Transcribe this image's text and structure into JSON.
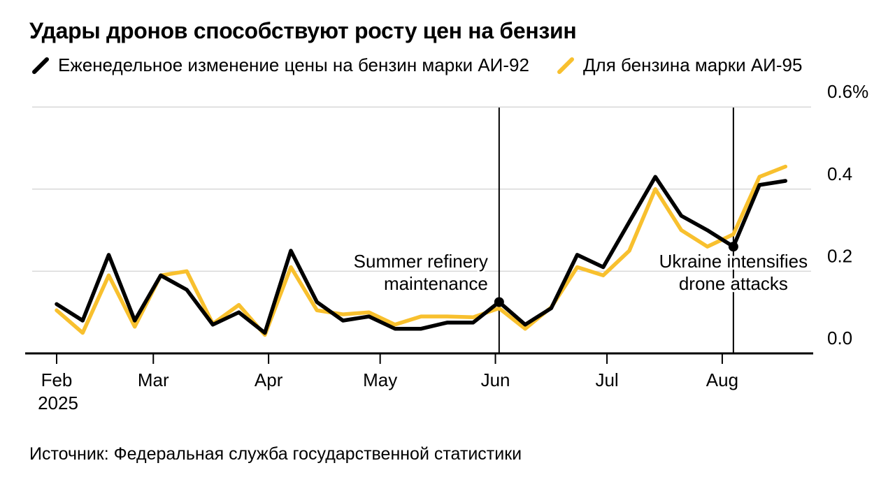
{
  "title": "Удары дронов способствуют росту цен на бензин",
  "legend": [
    {
      "label": "Еженедельное изменение цены на бензин марки АИ-92",
      "color": "#000000"
    },
    {
      "label": "Для бензина марки АИ-95",
      "color": "#F8C02E"
    }
  ],
  "source": "Источник: Федеральная служба государственной статистики",
  "chart_data": {
    "type": "line",
    "x_unit": "week",
    "year": "2025",
    "x": [
      "Feb 3",
      "Feb 10",
      "Feb 17",
      "Feb 24",
      "Mar 3",
      "Mar 10",
      "Mar 17",
      "Mar 24",
      "Mar 31",
      "Apr 7",
      "Apr 14",
      "Apr 21",
      "Apr 28",
      "May 5",
      "May 12",
      "May 19",
      "May 26",
      "Jun 2",
      "Jun 9",
      "Jun 16",
      "Jun 23",
      "Jun 30",
      "Jul 7",
      "Jul 14",
      "Jul 21",
      "Jul 28",
      "Aug 4",
      "Aug 11",
      "Aug 18"
    ],
    "series": [
      {
        "name": "АИ-92",
        "color": "#000000",
        "values": [
          0.12,
          0.08,
          0.24,
          0.08,
          0.19,
          0.155,
          0.07,
          0.1,
          0.05,
          0.25,
          0.125,
          0.08,
          0.09,
          0.06,
          0.06,
          0.075,
          0.075,
          0.125,
          0.07,
          0.11,
          0.24,
          0.21,
          0.32,
          0.43,
          0.335,
          0.3,
          0.26,
          0.41,
          0.42
        ]
      },
      {
        "name": "АИ-95",
        "color": "#F8C02E",
        "values": [
          0.105,
          0.05,
          0.19,
          0.065,
          0.19,
          0.2,
          0.072,
          0.118,
          0.045,
          0.21,
          0.105,
          0.095,
          0.1,
          0.07,
          0.09,
          0.09,
          0.088,
          0.11,
          0.06,
          0.112,
          0.21,
          0.19,
          0.25,
          0.4,
          0.3,
          0.26,
          0.29,
          0.43,
          0.455
        ]
      }
    ],
    "ylabel": "",
    "xlabel": "",
    "ylim": [
      0.0,
      0.6
    ],
    "grid": "horizontal",
    "legend_position": "top",
    "yticks": [
      {
        "value": 0.6,
        "label": "0.6%"
      },
      {
        "value": 0.4,
        "label": "0.4"
      },
      {
        "value": 0.2,
        "label": "0.2"
      },
      {
        "value": 0.0,
        "label": "0.0"
      }
    ],
    "xticks": [
      {
        "label": "Feb",
        "sublabel": "2025",
        "day": 0
      },
      {
        "label": "Mar",
        "day": 26
      },
      {
        "label": "Apr",
        "day": 57
      },
      {
        "label": "May",
        "day": 87
      },
      {
        "label": "Jun",
        "day": 118
      },
      {
        "label": "Jul",
        "day": 148
      },
      {
        "label": "Aug",
        "day": 179
      }
    ],
    "annotations": [
      {
        "lines": [
          "Summer refinery",
          "maintenance"
        ],
        "week_index": 17,
        "marker_value": 0.125,
        "align": "right"
      },
      {
        "lines": [
          "Ukraine intensifies",
          "drone attacks"
        ],
        "week_index": 26,
        "marker_value": 0.26,
        "align": "center"
      }
    ]
  }
}
